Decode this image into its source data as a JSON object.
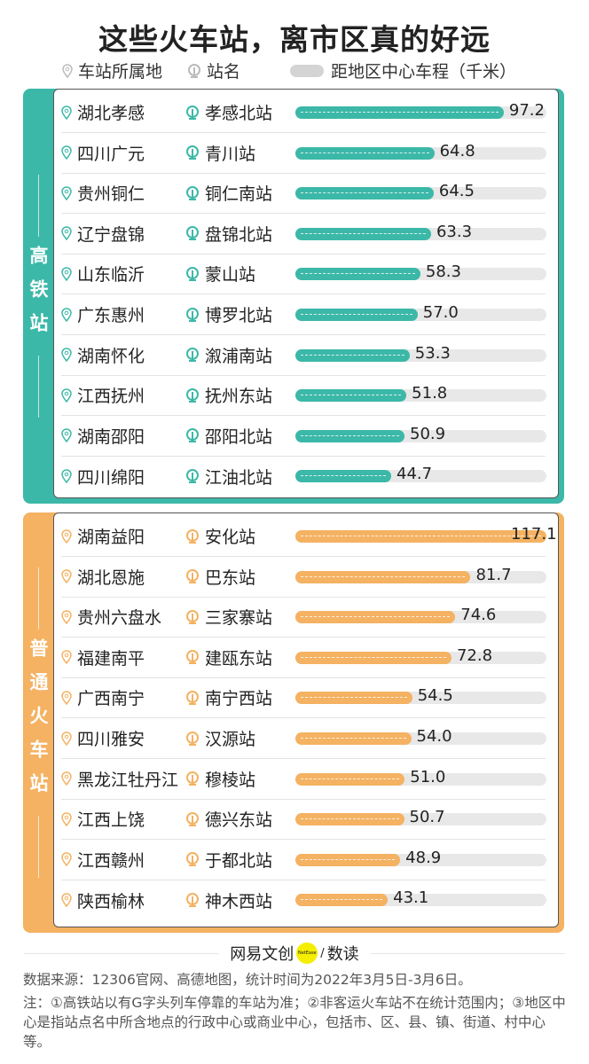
{
  "title": "这些火车站，离市区真的好远",
  "legend": {
    "location": "车站所属地",
    "station": "站名",
    "distance": "距地区中心车程（千米）"
  },
  "colors": {
    "high_speed": "#3cb8a8",
    "regular": "#f4b262",
    "track": "#e8e8e8"
  },
  "footer": {
    "brand": "网易文创",
    "brand_badge": "NetEase",
    "brand_sep": "/",
    "brand_sub": "数读",
    "source": "数据来源：12306官网、高德地图，统计时间为2022年3月5日-3月6日。",
    "note": "注：①高铁站以有G字头列车停靠的车站为准；②非客运火车站不在统计范围内；③地区中心是指站点名中所含地点的行政中心或商业中心，包括市、区、县、镇、街道、村中心等。"
  },
  "chart_data": [
    {
      "type": "bar",
      "orientation": "horizontal",
      "group": "高铁站",
      "xlim": [
        0,
        117.1
      ],
      "rows": [
        {
          "location": "湖北孝感",
          "station": "孝感北站",
          "value": 97.2
        },
        {
          "location": "四川广元",
          "station": "青川站",
          "value": 64.8
        },
        {
          "location": "贵州铜仁",
          "station": "铜仁南站",
          "value": 64.5
        },
        {
          "location": "辽宁盘锦",
          "station": "盘锦北站",
          "value": 63.3
        },
        {
          "location": "山东临沂",
          "station": "蒙山站",
          "value": 58.3
        },
        {
          "location": "广东惠州",
          "station": "博罗北站",
          "value": 57.0
        },
        {
          "location": "湖南怀化",
          "station": "溆浦南站",
          "value": 53.3
        },
        {
          "location": "江西抚州",
          "station": "抚州东站",
          "value": 51.8
        },
        {
          "location": "湖南邵阳",
          "station": "邵阳北站",
          "value": 50.9
        },
        {
          "location": "四川绵阳",
          "station": "江油北站",
          "value": 44.7
        }
      ]
    },
    {
      "type": "bar",
      "orientation": "horizontal",
      "group": "普通火车站",
      "xlim": [
        0,
        117.1
      ],
      "rows": [
        {
          "location": "湖南益阳",
          "station": "安化站",
          "value": 117.1
        },
        {
          "location": "湖北恩施",
          "station": "巴东站",
          "value": 81.7
        },
        {
          "location": "贵州六盘水",
          "station": "三家寨站",
          "value": 74.6
        },
        {
          "location": "福建南平",
          "station": "建瓯东站",
          "value": 72.8
        },
        {
          "location": "广西南宁",
          "station": "南宁西站",
          "value": 54.5
        },
        {
          "location": "四川雅安",
          "station": "汉源站",
          "value": 54.0
        },
        {
          "location": "黑龙江牡丹江",
          "station": "穆棱站",
          "value": 51.0
        },
        {
          "location": "江西上饶",
          "station": "德兴东站",
          "value": 50.7
        },
        {
          "location": "江西赣州",
          "station": "于都北站",
          "value": 48.9
        },
        {
          "location": "陕西榆林",
          "station": "神木西站",
          "value": 43.1
        }
      ]
    }
  ]
}
